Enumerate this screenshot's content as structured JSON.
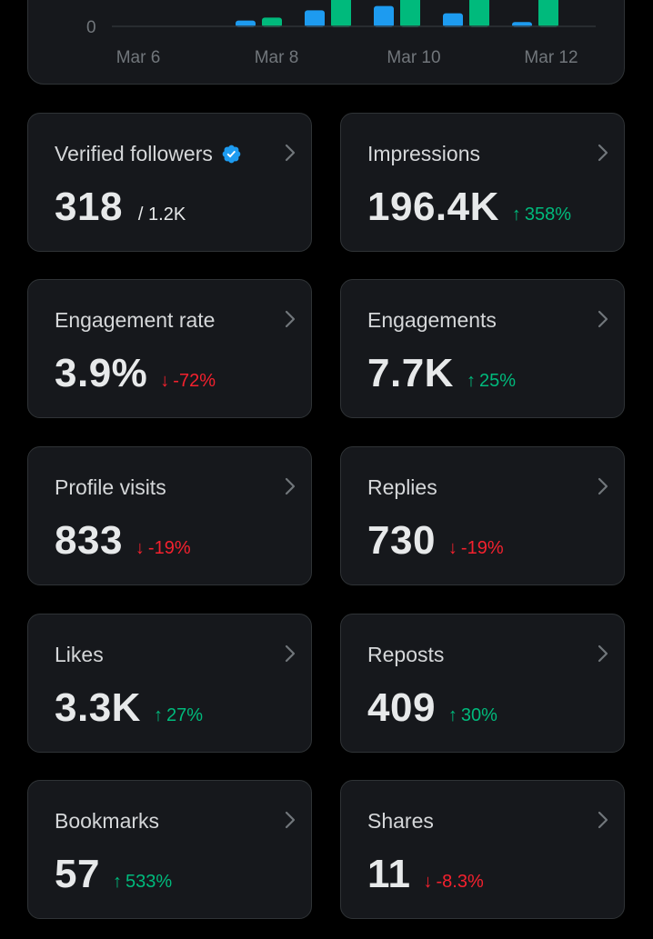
{
  "chart": {
    "y_tick": "0",
    "x_ticks": [
      "Mar 6",
      "Mar 8",
      "Mar 10",
      "Mar 12"
    ]
  },
  "chart_data": {
    "type": "bar",
    "categories": [
      "Mar 6",
      "Mar 7",
      "Mar 8",
      "Mar 9",
      "Mar 10",
      "Mar 11",
      "Mar 12"
    ],
    "series": [
      {
        "color": "#1d9bf0",
        "values": [
          0,
          0.4,
          1.1,
          1.4,
          0.9,
          0.3,
          0
        ]
      },
      {
        "color": "#00ba7c",
        "values": [
          0,
          0.6,
          3.0,
          3.0,
          3.0,
          3.0,
          0
        ]
      }
    ],
    "ylim": [
      0,
      3
    ]
  },
  "colors": {
    "background": "#000000",
    "card": "#16181c",
    "border": "#2f3336",
    "positive": "#00ba7c",
    "negative": "#f4212e",
    "verified": "#1d9bf0"
  },
  "cards": [
    {
      "label": "Verified followers",
      "value": "318",
      "sub": "/ 1.2K",
      "icon": "verified-badge-icon"
    },
    {
      "label": "Impressions",
      "value": "196.4K",
      "arrow": "↑",
      "change": "358%",
      "trend": "up"
    },
    {
      "label": "Engagement rate",
      "value": "3.9%",
      "arrow": "↓",
      "change": "-72%",
      "trend": "down"
    },
    {
      "label": "Engagements",
      "value": "7.7K",
      "arrow": "↑",
      "change": "25%",
      "trend": "up"
    },
    {
      "label": "Profile visits",
      "value": "833",
      "arrow": "↓",
      "change": "-19%",
      "trend": "down"
    },
    {
      "label": "Replies",
      "value": "730",
      "arrow": "↓",
      "change": "-19%",
      "trend": "down"
    },
    {
      "label": "Likes",
      "value": "3.3K",
      "arrow": "↑",
      "change": "27%",
      "trend": "up"
    },
    {
      "label": "Reposts",
      "value": "409",
      "arrow": "↑",
      "change": "30%",
      "trend": "up"
    },
    {
      "label": "Bookmarks",
      "value": "57",
      "arrow": "↑",
      "change": "533%",
      "trend": "up"
    },
    {
      "label": "Shares",
      "value": "11",
      "arrow": "↓",
      "change": "-8.3%",
      "trend": "down"
    }
  ]
}
